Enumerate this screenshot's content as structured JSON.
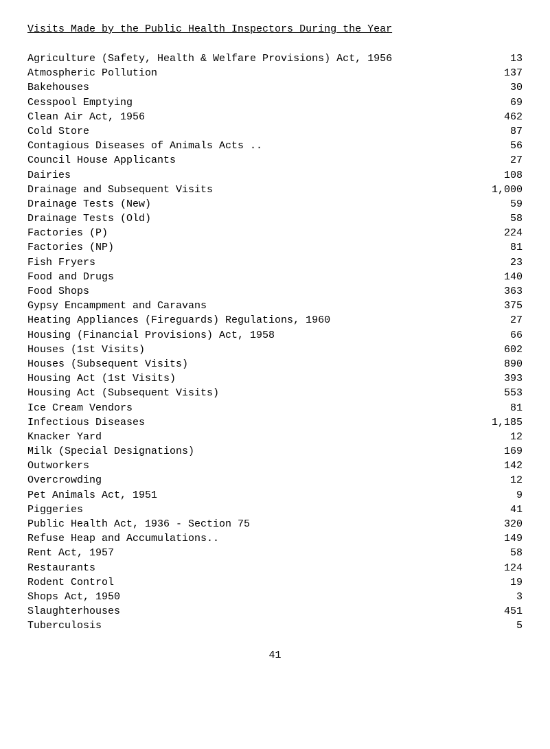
{
  "title": "Visits Made by the Public Health Inspectors During the Year",
  "rows": [
    {
      "label": "Agriculture (Safety, Health & Welfare Provisions) Act, 1956",
      "value": "13"
    },
    {
      "label": "Atmospheric Pollution",
      "value": "137"
    },
    {
      "label": "Bakehouses",
      "value": "30"
    },
    {
      "label": "Cesspool Emptying",
      "value": "69"
    },
    {
      "label": "Clean Air Act, 1956",
      "value": "462"
    },
    {
      "label": "Cold Store",
      "value": "87"
    },
    {
      "label": "Contagious Diseases of Animals Acts ..",
      "value": "56"
    },
    {
      "label": "Council House Applicants",
      "value": "27"
    },
    {
      "label": "Dairies",
      "value": "108"
    },
    {
      "label": "Drainage and Subsequent Visits",
      "value": "1,000"
    },
    {
      "label": "Drainage Tests (New)",
      "value": "59"
    },
    {
      "label": "Drainage Tests (Old)",
      "value": "58"
    },
    {
      "label": "Factories (P)",
      "value": "224"
    },
    {
      "label": "Factories (NP)",
      "value": "81"
    },
    {
      "label": "Fish Fryers",
      "value": "23"
    },
    {
      "label": "Food and Drugs",
      "value": "140"
    },
    {
      "label": "Food Shops",
      "value": "363"
    },
    {
      "label": "Gypsy Encampment and Caravans",
      "value": "375"
    },
    {
      "label": "Heating Appliances (Fireguards) Regulations, 1960",
      "value": "27"
    },
    {
      "label": "Housing (Financial Provisions) Act, 1958",
      "value": "66"
    },
    {
      "label": "Houses (1st Visits)",
      "value": "602"
    },
    {
      "label": "Houses (Subsequent Visits)",
      "value": "890"
    },
    {
      "label": "Housing Act (1st Visits)",
      "value": "393"
    },
    {
      "label": "Housing Act (Subsequent Visits)",
      "value": "553"
    },
    {
      "label": "Ice Cream Vendors",
      "value": "81"
    },
    {
      "label": "Infectious Diseases",
      "value": "1,185"
    },
    {
      "label": "Knacker Yard",
      "value": "12"
    },
    {
      "label": "Milk (Special Designations)",
      "value": "169"
    },
    {
      "label": "Outworkers",
      "value": "142"
    },
    {
      "label": "Overcrowding",
      "value": "12"
    },
    {
      "label": "Pet Animals Act, 1951",
      "value": "9"
    },
    {
      "label": "Piggeries",
      "value": "41"
    },
    {
      "label": "Public Health Act, 1936 - Section 75",
      "value": "320"
    },
    {
      "label": "Refuse Heap and Accumulations..",
      "value": "149"
    },
    {
      "label": "Rent Act, 1957",
      "value": "58"
    },
    {
      "label": "Restaurants",
      "value": "124"
    },
    {
      "label": "Rodent Control",
      "value": "19"
    },
    {
      "label": "Shops Act, 1950",
      "value": "3"
    },
    {
      "label": "Slaughterhouses",
      "value": "451"
    },
    {
      "label": "Tuberculosis",
      "value": "5"
    }
  ],
  "page_number": "41"
}
